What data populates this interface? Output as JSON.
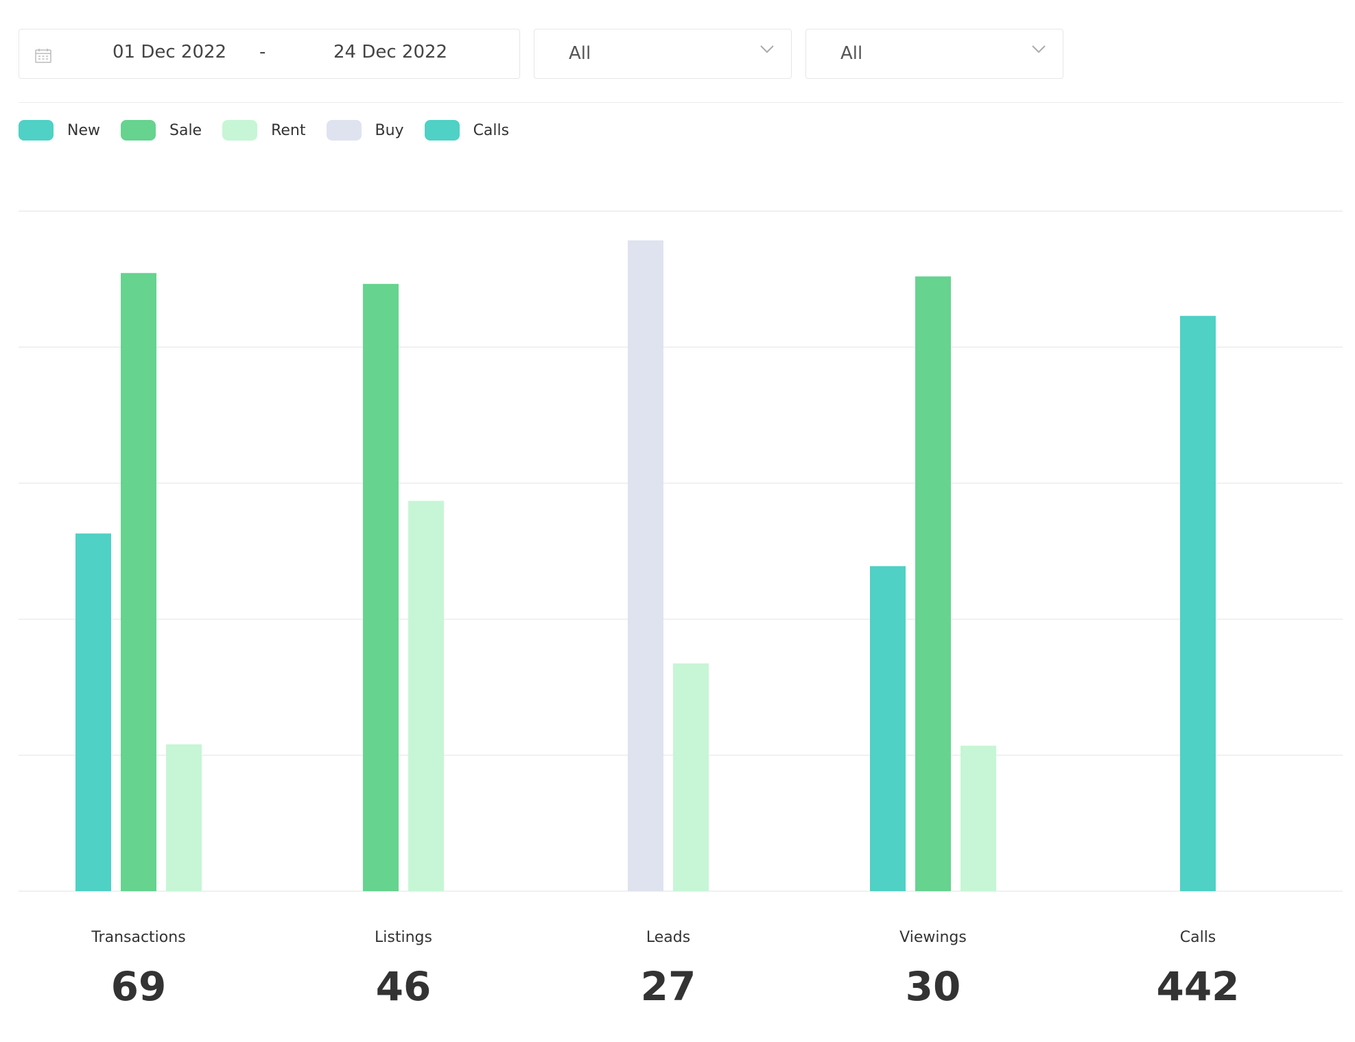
{
  "filters": {
    "date_from": "01 Dec 2022",
    "date_separator": "-",
    "date_to": "24 Dec 2022",
    "select_1": "All",
    "select_2": "All"
  },
  "legend": [
    {
      "label": "New",
      "color": "#4fd1c5"
    },
    {
      "label": "Sale",
      "color": "#66d38f"
    },
    {
      "label": "Rent",
      "color": "#c6f6d5"
    },
    {
      "label": "Buy",
      "color": "#dfe3f0"
    },
    {
      "label": "Calls",
      "color": "#4fd1c5"
    }
  ],
  "chart_data": {
    "type": "bar",
    "title": "",
    "xlabel": "",
    "ylabel": "",
    "ylim": [
      0,
      100
    ],
    "grid": true,
    "legend_position": "top-left",
    "categories": [
      "Transactions",
      "Listings",
      "Leads",
      "Viewings",
      "Calls"
    ],
    "totals": [
      "69",
      "46",
      "27",
      "30",
      "442"
    ],
    "bars": [
      [
        {
          "series": "New",
          "value": 52.6
        },
        {
          "series": "Sale",
          "value": 90.9
        },
        {
          "series": "Rent",
          "value": 21.6
        }
      ],
      [
        {
          "series": "Sale",
          "value": 89.3
        },
        {
          "series": "Rent",
          "value": 57.4
        }
      ],
      [
        {
          "series": "Buy",
          "value": 95.7
        },
        {
          "series": "Rent",
          "value": 33.5
        }
      ],
      [
        {
          "series": "New",
          "value": 47.8
        },
        {
          "series": "Sale",
          "value": 90.4
        },
        {
          "series": "Rent",
          "value": 21.4
        }
      ],
      [
        {
          "series": "Calls",
          "value": 84.6
        }
      ]
    ]
  }
}
